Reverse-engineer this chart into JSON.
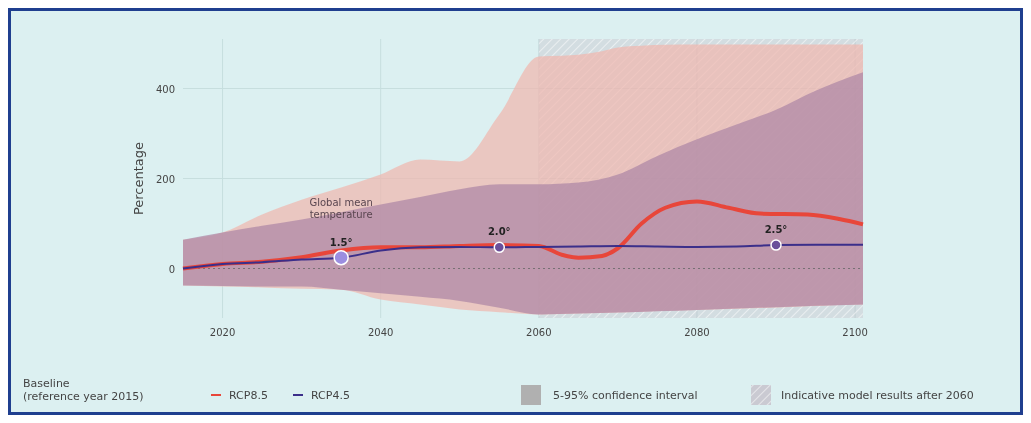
{
  "chart_data": {
    "type": "line",
    "ylabel": "Percentage",
    "xlim": [
      2015,
      2101
    ],
    "xticks": [
      2020,
      2040,
      2060,
      2080,
      2100
    ],
    "ylim": [
      -110,
      510
    ],
    "yticks": [
      0,
      200,
      400
    ],
    "grid": true,
    "legend": "bottom",
    "legend_title": "Baseline\n(reference year 2015)",
    "series": [
      {
        "name": "RCP8.5",
        "color": "#e8463a",
        "x": [
          2015,
          2020,
          2025,
          2030,
          2035,
          2040,
          2045,
          2050,
          2055,
          2060,
          2063,
          2065,
          2068,
          2070,
          2073,
          2076,
          2080,
          2084,
          2088,
          2094,
          2098,
          2101
        ],
        "values": [
          0,
          10,
          15,
          25,
          40,
          47,
          47,
          50,
          52,
          50,
          30,
          24,
          28,
          45,
          100,
          135,
          149,
          135,
          122,
          120,
          110,
          98
        ],
        "lower": [
          -38,
          -40,
          -42,
          -45,
          -47,
          -69,
          -80,
          -91,
          -97,
          -102,
          -101,
          -100,
          -99,
          -98,
          -96,
          -94,
          -92,
          -90,
          -88,
          -84,
          -81,
          -80
        ],
        "upper": [
          64,
          80,
          120,
          153,
          180,
          209,
          242,
          238,
          342,
          471,
          473,
          475,
          483,
          491,
          495,
          497,
          498,
          498,
          498,
          498,
          498,
          498
        ]
      },
      {
        "name": "RCP4.5",
        "color": "#3b2f8a",
        "x": [
          2015,
          2020,
          2025,
          2030,
          2035,
          2040,
          2045,
          2050,
          2055,
          2060,
          2065,
          2070,
          2075,
          2080,
          2085,
          2090,
          2095,
          2101
        ],
        "values": [
          0,
          10,
          14,
          20,
          24,
          40,
          47,
          48,
          47,
          48,
          49,
          50,
          49,
          48,
          49,
          52,
          53,
          53
        ],
        "lower": [
          -38,
          -39,
          -40,
          -40,
          -47,
          -55,
          -63,
          -72,
          -87,
          -102,
          -100,
          -98,
          -95,
          -92,
          -89,
          -86,
          -83,
          -80
        ],
        "upper": [
          64,
          80,
          95,
          109,
          125,
          142,
          159,
          176,
          187,
          187,
          191,
          209,
          250,
          287,
          320,
          353,
          395,
          436
        ]
      }
    ],
    "ref_lines": [
      {
        "axis": "y",
        "value": 0,
        "color": "#666666",
        "line_style": "dotted"
      }
    ],
    "bands": [
      {
        "axis": "x",
        "from": 2060,
        "to": 2101,
        "label": "Indicative model results after 2060",
        "color": "#b8a4b4"
      }
    ],
    "annotations": [
      {
        "text": "1.5°",
        "x": 2035,
        "y": 24
      },
      {
        "text": "2.0°",
        "x": 2055,
        "y": 47
      },
      {
        "text": "2.5°",
        "x": 2090,
        "y": 52
      },
      "Global mean temperature",
      "5-95% confidence interval"
    ]
  }
}
